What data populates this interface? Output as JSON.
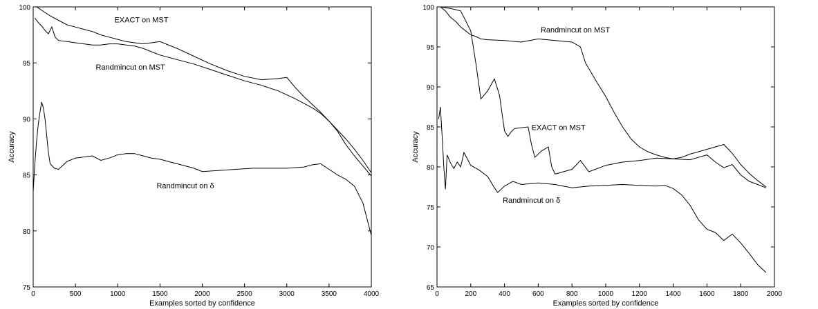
{
  "chart_data": [
    {
      "type": "line",
      "xlabel": "Examples sorted by confidence",
      "ylabel": "Accuracy",
      "xlim": [
        0,
        4000
      ],
      "ylim": [
        75,
        100
      ],
      "xticks": [
        0,
        500,
        1000,
        1500,
        2000,
        2500,
        3000,
        3500,
        4000
      ],
      "yticks": [
        75,
        80,
        85,
        90,
        95,
        100
      ],
      "grid": false,
      "series": [
        {
          "name": "EXACT on MST",
          "x": [
            40,
            80,
            120,
            160,
            200,
            300,
            400,
            500,
            600,
            700,
            800,
            900,
            1000,
            1100,
            1200,
            1300,
            1400,
            1500,
            1700,
            1900,
            2100,
            2300,
            2500,
            2700,
            2900,
            3000,
            3100,
            3200,
            3300,
            3400,
            3500,
            3600,
            3700,
            3800,
            3900,
            4000
          ],
          "y": [
            100,
            99.8,
            99.6,
            99.4,
            99.2,
            98.8,
            98.4,
            98.2,
            98.0,
            97.8,
            97.5,
            97.3,
            97.1,
            96.9,
            96.8,
            96.7,
            96.8,
            96.9,
            96.3,
            95.6,
            94.9,
            94.3,
            93.8,
            93.5,
            93.6,
            93.7,
            92.8,
            92.0,
            91.3,
            90.6,
            89.8,
            88.9,
            87.7,
            86.7,
            85.8,
            84.9
          ]
        },
        {
          "name": "Randmincut on MST",
          "x": [
            20,
            60,
            100,
            140,
            180,
            220,
            260,
            300,
            400,
            500,
            600,
            700,
            800,
            900,
            1000,
            1100,
            1200,
            1300,
            1400,
            1500,
            1700,
            1900,
            2100,
            2300,
            2500,
            2700,
            2900,
            3100,
            3300,
            3400,
            3500,
            3600,
            3700,
            3800,
            3900,
            4000
          ],
          "y": [
            99.0,
            98.6,
            98.3,
            97.9,
            97.6,
            98.2,
            97.3,
            97.0,
            96.9,
            96.8,
            96.7,
            96.6,
            96.6,
            96.7,
            96.7,
            96.6,
            96.5,
            96.3,
            96.0,
            95.7,
            95.3,
            94.9,
            94.4,
            93.9,
            93.4,
            93.0,
            92.5,
            91.8,
            91.0,
            90.5,
            89.8,
            89.0,
            88.2,
            87.3,
            86.3,
            85.2
          ]
        },
        {
          "name": "Randmincut on δ",
          "x": [
            0,
            20,
            40,
            60,
            80,
            100,
            120,
            140,
            160,
            180,
            200,
            250,
            300,
            400,
            500,
            600,
            700,
            800,
            900,
            1000,
            1100,
            1200,
            1300,
            1400,
            1500,
            1600,
            1700,
            1800,
            1900,
            2000,
            2200,
            2400,
            2600,
            2800,
            3000,
            3200,
            3300,
            3400,
            3500,
            3600,
            3700,
            3800,
            3900,
            4000
          ],
          "y": [
            83.5,
            86.0,
            88.0,
            89.5,
            90.6,
            91.5,
            91.0,
            90.0,
            88.5,
            87.0,
            86.0,
            85.6,
            85.5,
            86.2,
            86.5,
            86.6,
            86.7,
            86.3,
            86.5,
            86.8,
            86.9,
            86.9,
            86.7,
            86.5,
            86.4,
            86.2,
            86.0,
            85.8,
            85.6,
            85.3,
            85.4,
            85.5,
            85.6,
            85.6,
            85.6,
            85.7,
            85.9,
            86.0,
            85.5,
            85.0,
            84.6,
            84.0,
            82.5,
            79.6
          ]
        }
      ],
      "annotations": [
        {
          "text": "EXACT on MST",
          "x": 1280,
          "y": 98.6
        },
        {
          "text": "Randmincut on MST",
          "x": 1150,
          "y": 94.4
        },
        {
          "text": "Randmincut on δ",
          "x": 1800,
          "y": 83.8
        }
      ]
    },
    {
      "type": "line",
      "xlabel": "Examples sorted by confidence",
      "ylabel": "Accuracy",
      "xlim": [
        0,
        2000
      ],
      "ylim": [
        65,
        100
      ],
      "xticks": [
        0,
        200,
        400,
        600,
        800,
        1000,
        1200,
        1400,
        1600,
        1800,
        2000
      ],
      "yticks": [
        65,
        70,
        75,
        80,
        85,
        90,
        95,
        100
      ],
      "grid": false,
      "series": [
        {
          "name": "Randmincut on MST",
          "x": [
            20,
            50,
            80,
            110,
            140,
            170,
            200,
            230,
            260,
            300,
            400,
            500,
            600,
            700,
            800,
            850,
            880,
            950,
            1000,
            1050,
            1100,
            1150,
            1200,
            1250,
            1300,
            1350,
            1400,
            1450,
            1500,
            1550,
            1600,
            1650,
            1700,
            1750,
            1800,
            1850,
            1900,
            1950
          ],
          "y": [
            100,
            99.5,
            98.7,
            98.2,
            97.5,
            97.0,
            96.5,
            96.3,
            96.0,
            95.9,
            95.8,
            95.6,
            96.0,
            95.8,
            95.6,
            95.0,
            93.0,
            90.5,
            88.8,
            86.8,
            85.0,
            83.5,
            82.5,
            81.9,
            81.5,
            81.2,
            81.0,
            81.2,
            81.6,
            81.9,
            82.2,
            82.5,
            82.8,
            81.7,
            80.3,
            79.2,
            78.3,
            77.5
          ]
        },
        {
          "name": "EXACT on MST",
          "x": [
            20,
            80,
            140,
            200,
            230,
            260,
            300,
            340,
            370,
            400,
            420,
            440,
            460,
            500,
            540,
            560,
            580,
            620,
            660,
            680,
            700,
            800,
            850,
            900,
            1000,
            1100,
            1200,
            1300,
            1400,
            1500,
            1600,
            1650,
            1700,
            1750,
            1800,
            1850,
            1900,
            1950
          ],
          "y": [
            100,
            99.8,
            99.5,
            97.0,
            93.0,
            88.5,
            89.5,
            91.0,
            89.0,
            84.5,
            83.8,
            84.4,
            84.8,
            84.9,
            85.0,
            82.8,
            81.2,
            82.0,
            82.5,
            80.0,
            79.1,
            79.7,
            80.8,
            79.4,
            80.2,
            80.6,
            80.8,
            81.1,
            81.0,
            80.9,
            81.5,
            80.6,
            79.9,
            80.3,
            79.0,
            78.2,
            77.8,
            77.4
          ]
        },
        {
          "name": "Randmincut on δ",
          "x": [
            10,
            20,
            30,
            40,
            50,
            60,
            80,
            100,
            120,
            140,
            160,
            200,
            250,
            300,
            340,
            360,
            400,
            450,
            500,
            600,
            700,
            800,
            900,
            1000,
            1100,
            1200,
            1300,
            1350,
            1400,
            1450,
            1500,
            1550,
            1600,
            1650,
            1700,
            1750,
            1800,
            1850,
            1900,
            1950
          ],
          "y": [
            86.0,
            87.5,
            84.0,
            80.0,
            77.2,
            81.5,
            80.5,
            79.8,
            80.6,
            80.0,
            81.8,
            80.2,
            79.6,
            78.8,
            77.4,
            76.8,
            77.6,
            78.2,
            77.8,
            78.0,
            77.8,
            77.4,
            77.6,
            77.7,
            77.8,
            77.7,
            77.6,
            77.7,
            77.3,
            76.5,
            75.2,
            73.4,
            72.2,
            71.8,
            70.8,
            71.6,
            70.5,
            69.2,
            67.8,
            66.8
          ]
        }
      ],
      "annotations": [
        {
          "text": "Randmincut on MST",
          "x": 820,
          "y": 96.8
        },
        {
          "text": "EXACT on MST",
          "x": 720,
          "y": 84.6
        },
        {
          "text": "Randmincut on δ",
          "x": 560,
          "y": 75.5
        }
      ]
    }
  ]
}
